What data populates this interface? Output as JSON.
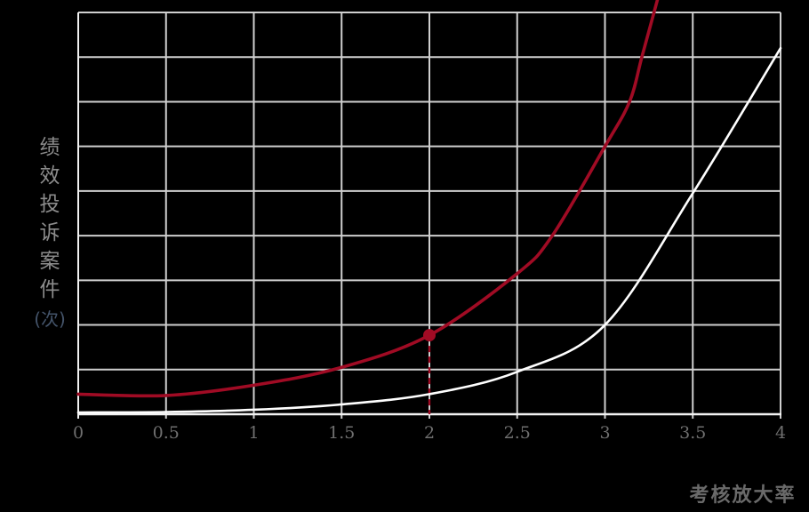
{
  "chart_data": {
    "type": "line",
    "title": "",
    "xlabel": "考核放大率",
    "ylabel_main": "绩效投诉案件",
    "ylabel_unit": "(次)",
    "x_ticks": [
      "0",
      "0.5",
      "1",
      "1.5",
      "2",
      "2.5",
      "3",
      "3.5",
      "4"
    ],
    "xlim": [
      0,
      4
    ],
    "ylim": [
      0,
      9
    ],
    "y_axis_note": "no numeric y labels; values given in gridline-row units (9 rows)",
    "grid": {
      "x_step": 0.5,
      "y_step": 1,
      "color": "#cfcfcf",
      "on": true
    },
    "axis_color": "#f2f2f2",
    "background": "#000000",
    "legend": "none",
    "series": [
      {
        "name": "red-curve",
        "color": "#a00b24",
        "width": 3.6,
        "points": [
          [
            0,
            0.45
          ],
          [
            0.5,
            0.42
          ],
          [
            1,
            0.65
          ],
          [
            1.5,
            1.05
          ],
          [
            2,
            1.77
          ],
          [
            2.5,
            3.15
          ],
          [
            2.7,
            4.0
          ],
          [
            3,
            6.0
          ],
          [
            3.14,
            7.0
          ],
          [
            3.21,
            8.0
          ],
          [
            3.3,
            9.3
          ]
        ]
      },
      {
        "name": "white-curve",
        "color": "#ffffff",
        "width": 2.6,
        "points": [
          [
            0,
            0.04
          ],
          [
            0.5,
            0.05
          ],
          [
            1,
            0.1
          ],
          [
            1.5,
            0.22
          ],
          [
            2,
            0.45
          ],
          [
            2.5,
            0.95
          ],
          [
            3,
            2.0
          ],
          [
            3.5,
            4.95
          ],
          [
            4,
            8.2
          ]
        ]
      }
    ],
    "marker": {
      "series": "red-curve",
      "x": 2,
      "y": 1.77,
      "radius": 7,
      "color": "#a00b24",
      "drop_line": {
        "to_y": 0,
        "dash": "7 5",
        "width": 2.4
      }
    }
  },
  "text_colors": {
    "tick_labels": "#6f6f6f",
    "y_title": "#8c8c8c",
    "y_unit": "#44546a",
    "x_title": "#6a6a6a"
  }
}
